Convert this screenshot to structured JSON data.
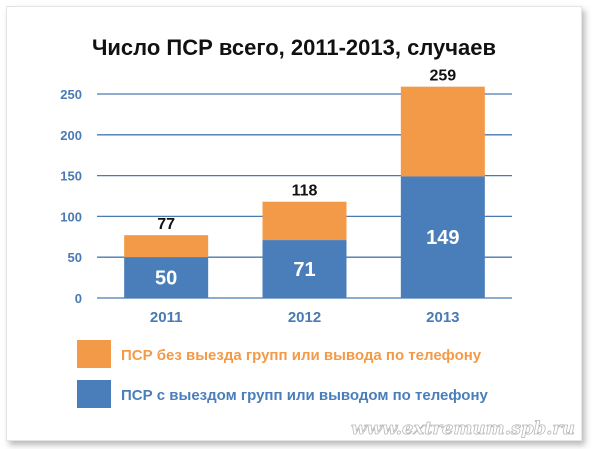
{
  "chart_data": {
    "type": "bar",
    "stacked": true,
    "title": "Число ПСР всего, 2011-2013, случаев",
    "categories": [
      "2011",
      "2012",
      "2013"
    ],
    "series": [
      {
        "name": "ПСР с выездом групп или выводом по телефону",
        "values": [
          50,
          71,
          149
        ],
        "color": "#4a7ebb"
      },
      {
        "name": "ПСР без выезда групп или вывода по телефону",
        "values": [
          27,
          47,
          110
        ],
        "color": "#f39a48"
      }
    ],
    "totals": [
      77,
      118,
      259
    ],
    "ylim": [
      0,
      250
    ],
    "yticks": [
      0,
      50,
      100,
      150,
      200,
      250
    ],
    "grid": true,
    "legend_position": "bottom",
    "colors": {
      "axis_text": "#4a7ab3",
      "orange_legend_text": "#f39a48",
      "blue_legend_text": "#4a7ebb",
      "grid": "#4a7ab3"
    }
  },
  "watermark": "www.extremum.spb.ru"
}
